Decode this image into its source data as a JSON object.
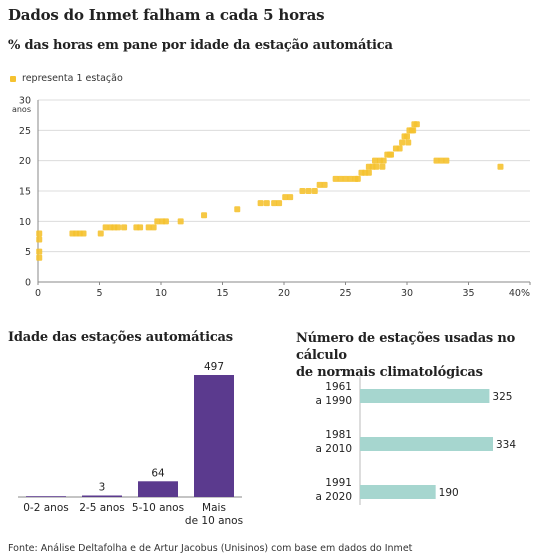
{
  "title": "Dados do Inmet falham a cada 5 horas",
  "source": "Fonte: Análise Deltafolha e de Artur Jacobus (Unisinos) com base em dados do Inmet",
  "colors": {
    "scatter": "#f5c230",
    "bars": "#5b3a8e",
    "norm_bars": "#a6d6cf",
    "grid": "#dcdcdc",
    "axis": "#888888"
  },
  "chart_data": [
    {
      "type": "scatter",
      "title": "% das horas em pane por idade da estação automática",
      "legend": "representa 1 estação",
      "ylabel": "anos",
      "xlim": [
        0,
        40
      ],
      "ylim": [
        0,
        30
      ],
      "x_ticks": [
        "0",
        "5",
        "10",
        "15",
        "20",
        "25",
        "30",
        "35",
        "40%"
      ],
      "y_ticks": [
        "0",
        "5",
        "10",
        "15",
        "20",
        "25",
        "30"
      ],
      "grid": true,
      "points": [
        [
          0.1,
          8
        ],
        [
          0.1,
          7
        ],
        [
          0.1,
          5
        ],
        [
          0.1,
          4
        ],
        [
          2.8,
          8
        ],
        [
          3.1,
          8
        ],
        [
          3.4,
          8
        ],
        [
          3.7,
          8
        ],
        [
          5.1,
          8
        ],
        [
          5.5,
          9
        ],
        [
          5.9,
          9
        ],
        [
          6.2,
          9
        ],
        [
          6.5,
          9
        ],
        [
          7.0,
          9
        ],
        [
          8.0,
          9
        ],
        [
          8.3,
          9
        ],
        [
          9.0,
          9
        ],
        [
          9.4,
          9
        ],
        [
          9.7,
          10
        ],
        [
          10.1,
          10
        ],
        [
          10.4,
          10
        ],
        [
          11.6,
          10
        ],
        [
          13.5,
          11
        ],
        [
          16.2,
          12
        ],
        [
          18.1,
          13
        ],
        [
          18.6,
          13
        ],
        [
          19.2,
          13
        ],
        [
          19.6,
          13
        ],
        [
          20.1,
          14
        ],
        [
          20.5,
          14
        ],
        [
          21.5,
          15
        ],
        [
          22.0,
          15
        ],
        [
          22.5,
          15
        ],
        [
          22.9,
          16
        ],
        [
          23.3,
          16
        ],
        [
          24.2,
          17
        ],
        [
          24.6,
          17
        ],
        [
          25.0,
          17
        ],
        [
          25.4,
          17
        ],
        [
          25.8,
          17
        ],
        [
          26.3,
          18
        ],
        [
          26.6,
          18
        ],
        [
          26.9,
          19
        ],
        [
          27.2,
          19
        ],
        [
          27.5,
          19
        ],
        [
          27.8,
          20
        ],
        [
          28.1,
          20
        ],
        [
          28.4,
          21
        ],
        [
          28.7,
          21
        ],
        [
          29.1,
          22
        ],
        [
          29.6,
          23
        ],
        [
          29.8,
          24
        ],
        [
          30.0,
          24
        ],
        [
          30.2,
          25
        ],
        [
          30.4,
          25
        ],
        [
          30.6,
          26
        ],
        [
          30.8,
          26
        ],
        [
          26.0,
          17
        ],
        [
          26.9,
          18
        ],
        [
          27.4,
          20
        ],
        [
          28.0,
          19
        ],
        [
          28.6,
          21
        ],
        [
          29.4,
          22
        ],
        [
          30.1,
          23
        ],
        [
          30.5,
          25
        ],
        [
          32.4,
          20
        ],
        [
          32.8,
          20
        ],
        [
          33.2,
          20
        ],
        [
          37.6,
          19
        ]
      ]
    },
    {
      "type": "bar",
      "title": "Idade das estações automáticas",
      "categories": [
        "0-2 anos",
        "2-5 anos",
        "5-10 anos",
        "Mais de 10 anos"
      ],
      "category_lines": [
        [
          "0-2 anos"
        ],
        [
          "2-5 anos"
        ],
        [
          "5-10 anos"
        ],
        [
          "Mais",
          "de 10 anos"
        ]
      ],
      "values": [
        0,
        3,
        64,
        497
      ],
      "value_labels": [
        "",
        "3",
        "64",
        "497"
      ],
      "ylim": [
        0,
        497
      ]
    },
    {
      "type": "bar",
      "orientation": "horizontal",
      "title": "Número de estações usadas no cálculo de normais climatológicas",
      "title_lines": [
        "Número de estações usadas no cálculo",
        "de normais climatológicas"
      ],
      "categories": [
        "1961 a 1990",
        "1981 a 2010",
        "1991 a 2020"
      ],
      "category_lines": [
        [
          "1961",
          "a 1990"
        ],
        [
          "1981",
          "a 2010"
        ],
        [
          "1991",
          "a 2020"
        ]
      ],
      "values": [
        325,
        334,
        190
      ],
      "value_labels": [
        "325",
        "334",
        "190"
      ],
      "xlim": [
        0,
        334
      ]
    }
  ]
}
